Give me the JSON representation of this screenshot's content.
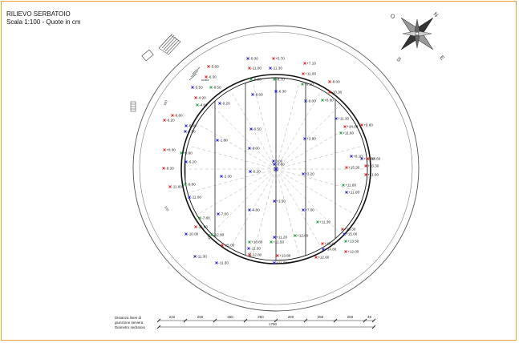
{
  "title": {
    "line1": "RILIEVO SERBATOIO",
    "line2": "Scala 1:100 - Quote in cm"
  },
  "compass": {
    "labels": [
      "N",
      "E",
      "S",
      "O"
    ]
  },
  "legend": {
    "row1": [
      "Distanza linee di",
      "giunzione lamiera"
    ],
    "row2": "Diametro serbatoio",
    "spacings": [
      "242",
      "250",
      "250",
      "250",
      "250",
      "250",
      "250",
      "48"
    ],
    "diameter": "1790"
  },
  "inner_labels": [
    "scala",
    "160",
    "160",
    "350",
    "140"
  ],
  "colors": {
    "red": "#e02020",
    "blue": "#2020c8",
    "green": "#20a040",
    "frame": "#f0a030"
  },
  "points": [
    {
      "v": "-5.60",
      "c": "red"
    },
    {
      "v": "-5.00",
      "c": "blue"
    },
    {
      "v": "+5.70",
      "c": "red"
    },
    {
      "v": "+7.10",
      "c": "red"
    },
    {
      "v": "-6.30",
      "c": "red"
    },
    {
      "v": "-11.00",
      "c": "red"
    },
    {
      "v": "-11.30",
      "c": "blue"
    },
    {
      "v": "+11.00",
      "c": "red"
    },
    {
      "v": "-9.50",
      "c": "green"
    },
    {
      "v": "-9.00",
      "c": "green"
    },
    {
      "v": "-8.70",
      "c": "green"
    },
    {
      "v": "+9.10",
      "c": "green"
    },
    {
      "v": "-8.00",
      "c": "red"
    },
    {
      "v": "-5.50",
      "c": "blue"
    },
    {
      "v": "-8.60",
      "c": "blue"
    },
    {
      "v": "-6.30",
      "c": "blue"
    },
    {
      "v": "-10.30",
      "c": "red"
    },
    {
      "v": "-4.90",
      "c": "red"
    },
    {
      "v": "-9.00",
      "c": "blue"
    },
    {
      "v": "+8.00",
      "c": "green"
    },
    {
      "v": "-4.60",
      "c": "green"
    },
    {
      "v": "-0.20",
      "c": "blue"
    },
    {
      "v": "-6.80",
      "c": "red"
    },
    {
      "v": "-6.20",
      "c": "red"
    },
    {
      "v": "+11.30",
      "c": "blue"
    },
    {
      "v": "-6.60",
      "c": "blue"
    },
    {
      "v": "+14.00",
      "c": "red"
    },
    {
      "v": "+9.60",
      "c": "red"
    },
    {
      "v": "-4.50",
      "c": "blue"
    },
    {
      "v": "-1.80",
      "c": "blue"
    },
    {
      "v": "-0.50",
      "c": "blue"
    },
    {
      "v": "+11.60",
      "c": "green"
    },
    {
      "v": "-9.00",
      "c": "blue"
    },
    {
      "v": "+3.80",
      "c": "blue"
    },
    {
      "v": "+8.00",
      "c": "red"
    },
    {
      "v": "+9.60",
      "c": "green"
    },
    {
      "v": "+8.10",
      "c": "blue"
    },
    {
      "v": "+11.60",
      "c": "blue"
    },
    {
      "v": "+14.60",
      "c": "red"
    },
    {
      "v": "-6.20",
      "c": "blue"
    },
    {
      "v": "0.00",
      "c": "blue"
    },
    {
      "v": "-0.80",
      "c": "blue"
    },
    {
      "v": "+10.30",
      "c": "red"
    },
    {
      "v": "-9.30",
      "c": "red"
    },
    {
      "v": "-0.20",
      "c": "blue"
    },
    {
      "v": "+15.30",
      "c": "red"
    },
    {
      "v": "-11.60",
      "c": "red"
    },
    {
      "v": "-2.30",
      "c": "blue"
    },
    {
      "v": "+3.20",
      "c": "blue"
    },
    {
      "v": "+11.80",
      "c": "green"
    },
    {
      "v": "-9.80",
      "c": "green"
    },
    {
      "v": "+11.00",
      "c": "red"
    },
    {
      "v": "+11.00",
      "c": "blue"
    },
    {
      "v": "-11.00",
      "c": "blue"
    },
    {
      "v": "+3.50",
      "c": "blue"
    },
    {
      "v": "-7.00",
      "c": "blue"
    },
    {
      "v": "-4.80",
      "c": "blue"
    },
    {
      "v": "+7.00",
      "c": "blue"
    },
    {
      "v": "-7.80",
      "c": "green"
    },
    {
      "v": "+11.30",
      "c": "green"
    },
    {
      "v": "-11.80",
      "c": "red"
    },
    {
      "v": "+15.30",
      "c": "red"
    },
    {
      "v": "+15.00",
      "c": "blue"
    },
    {
      "v": "-12.80",
      "c": "green"
    },
    {
      "v": "+12.50",
      "c": "green"
    },
    {
      "v": "+13.50",
      "c": "green"
    },
    {
      "v": "-10.00",
      "c": "blue"
    },
    {
      "v": "+10.80",
      "c": "green"
    },
    {
      "v": "+11.20",
      "c": "blue"
    },
    {
      "v": "+12.00",
      "c": "red"
    },
    {
      "v": "-15.00",
      "c": "red"
    },
    {
      "v": "-11.30",
      "c": "blue"
    },
    {
      "v": "+11.50",
      "c": "green"
    },
    {
      "v": "+15.40",
      "c": "red"
    },
    {
      "v": "+14.80",
      "c": "blue"
    },
    {
      "v": "-12.80",
      "c": "red"
    },
    {
      "v": "+13.80",
      "c": "red"
    },
    {
      "v": "+12.60",
      "c": "red"
    },
    {
      "v": "-11.30",
      "c": "blue"
    },
    {
      "v": "-11.30",
      "c": "blue"
    },
    {
      "v": "+11.80",
      "c": "blue"
    }
  ]
}
